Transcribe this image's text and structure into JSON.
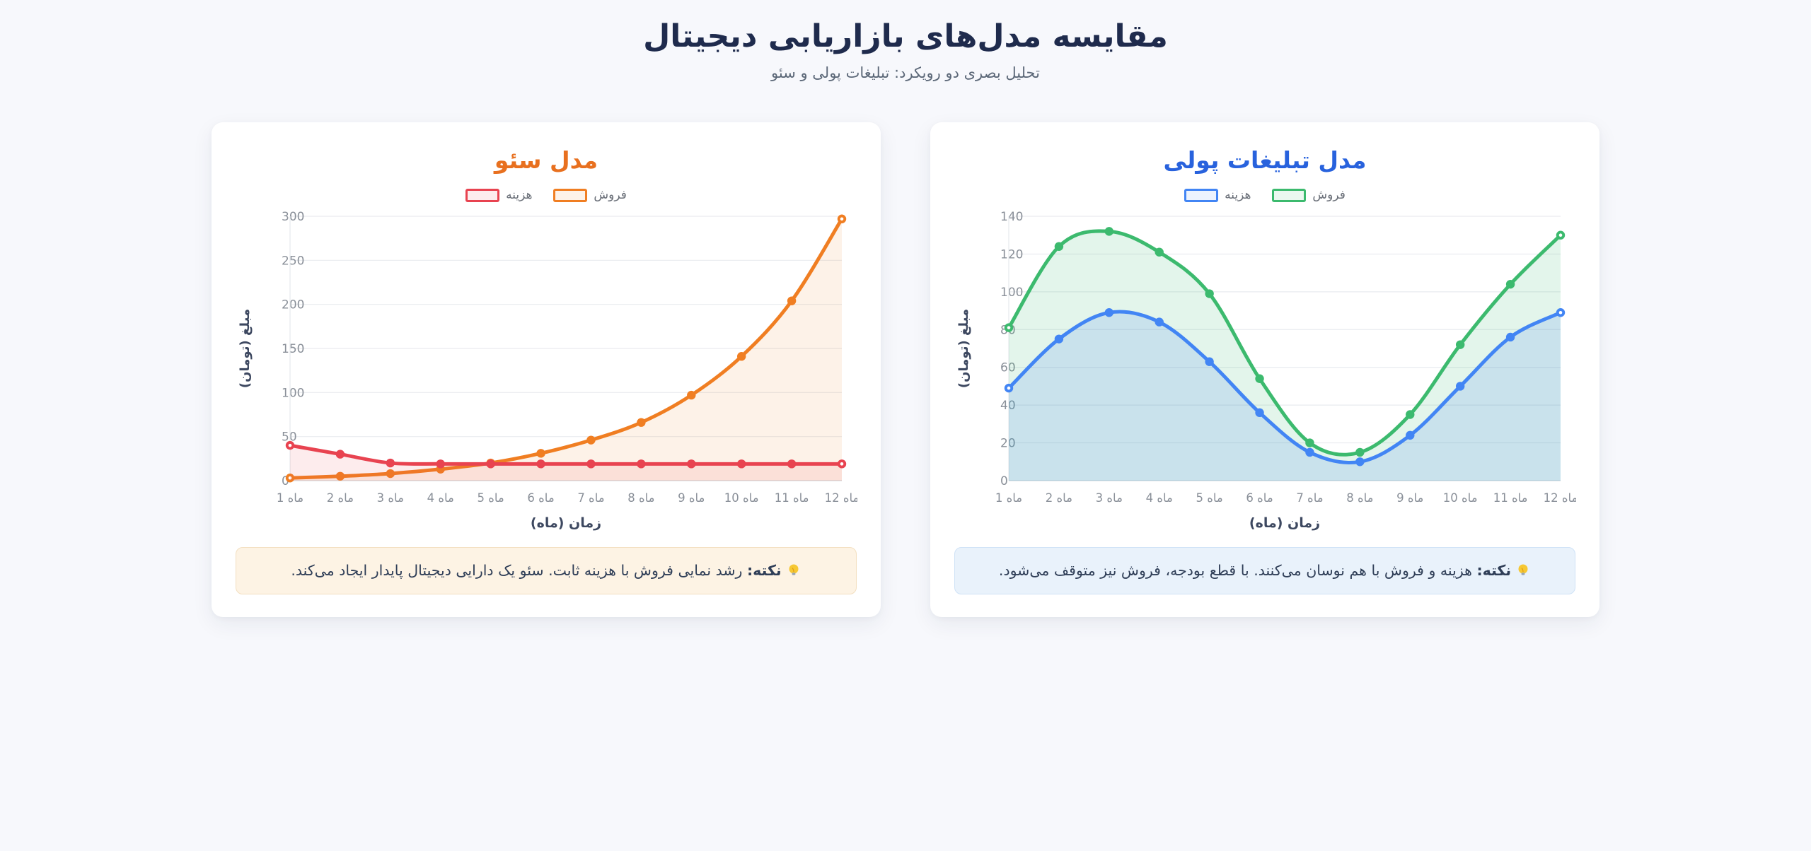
{
  "page": {
    "title": "مقایسه مدل‌های بازاریابی دیجیتال",
    "subtitle": "تحلیل بصری دو رویکرد: تبلیغات پولی و سئو",
    "background_color": "#f7f8fc"
  },
  "chart_data": [
    {
      "type": "line",
      "title": "مدل سئو",
      "title_color": "#e8701f",
      "categories": [
        "ماه 1",
        "ماه 2",
        "ماه 3",
        "ماه 4",
        "ماه 5",
        "ماه 6",
        "ماه 7",
        "ماه 8",
        "ماه 9",
        "ماه 10",
        "ماه 11",
        "ماه 12"
      ],
      "xlabel": "زمان (ماه)",
      "ylabel": "مبلغ (تومان)",
      "ylim": [
        0,
        300
      ],
      "ytick_step": 50,
      "grid": true,
      "legend_position": "top",
      "series": [
        {
          "name": "هزینه",
          "color": "#e84350",
          "fill_opacity": 0.1,
          "values": [
            40,
            30,
            20,
            19,
            19,
            19,
            19,
            19,
            19,
            19,
            19,
            19
          ]
        },
        {
          "name": "فروش",
          "color": "#f07e22",
          "fill_opacity": 0.1,
          "values": [
            3,
            5,
            8,
            13,
            20,
            31,
            46,
            66,
            97,
            141,
            204,
            297
          ]
        }
      ],
      "note_icon": "💡",
      "note_label": "نکته:",
      "note_text": "رشد نمایی فروش با هزینه ثابت. سئو یک دارایی دیجیتال پایدار ایجاد می‌کند.",
      "note_bg": "#fdf3e4",
      "note_border": "#f3dfc0"
    },
    {
      "type": "line",
      "title": "مدل تبلیغات پولی",
      "title_color": "#2862dd",
      "categories": [
        "ماه 1",
        "ماه 2",
        "ماه 3",
        "ماه 4",
        "ماه 5",
        "ماه 6",
        "ماه 7",
        "ماه 8",
        "ماه 9",
        "ماه 10",
        "ماه 11",
        "ماه 12"
      ],
      "xlabel": "زمان (ماه)",
      "ylabel": "مبلغ (تومان)",
      "ylim": [
        0,
        140
      ],
      "ytick_step": 20,
      "grid": true,
      "legend_position": "top",
      "series": [
        {
          "name": "هزینه",
          "color": "#4285f4",
          "fill_opacity": 0.16,
          "values": [
            49,
            75,
            89,
            84,
            63,
            36,
            15,
            10,
            24,
            50,
            76,
            89
          ]
        },
        {
          "name": "فروش",
          "color": "#3cba6e",
          "fill_opacity": 0.14,
          "values": [
            81,
            124,
            132,
            121,
            99,
            54,
            20,
            15,
            35,
            72,
            104,
            130
          ]
        }
      ],
      "note_icon": "💡",
      "note_label": "نکته:",
      "note_text": "هزینه و فروش با هم نوسان می‌کنند. با قطع بودجه، فروش نیز متوقف می‌شود.",
      "note_bg": "#e9f2fb",
      "note_border": "#cfe2f6"
    }
  ]
}
